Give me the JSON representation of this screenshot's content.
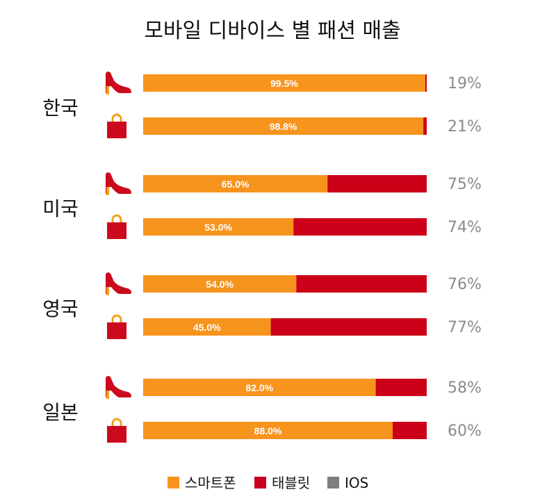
{
  "chart_data": {
    "type": "bar",
    "title": "모바일 디바이스 별 패션 매출",
    "orientation": "horizontal",
    "stacked": true,
    "groups": [
      {
        "country": "한국",
        "rows": [
          {
            "icon": "shoe-icon",
            "smartphone": 99.5,
            "label": "99.5%",
            "right_label": "19%"
          },
          {
            "icon": "bag-icon",
            "smartphone": 98.8,
            "label": "98.8%",
            "right_label": "21%"
          }
        ]
      },
      {
        "country": "미국",
        "rows": [
          {
            "icon": "shoe-icon",
            "smartphone": 65.0,
            "label": "65.0%",
            "right_label": "75%"
          },
          {
            "icon": "bag-icon",
            "smartphone": 53.0,
            "label": "53.0%",
            "right_label": "74%"
          }
        ]
      },
      {
        "country": "영국",
        "rows": [
          {
            "icon": "shoe-icon",
            "smartphone": 54.0,
            "label": "54.0%",
            "right_label": "76%"
          },
          {
            "icon": "bag-icon",
            "smartphone": 45.0,
            "label": "45.0%",
            "right_label": "77%"
          }
        ]
      },
      {
        "country": "일본",
        "rows": [
          {
            "icon": "shoe-icon",
            "smartphone": 82.0,
            "label": "82.0%",
            "right_label": "58%"
          },
          {
            "icon": "bag-icon",
            "smartphone": 88.0,
            "label": "88.0%",
            "right_label": "60%"
          }
        ]
      }
    ],
    "legend": [
      {
        "name": "스마트폰",
        "color": "#f7941d"
      },
      {
        "name": "태블릿",
        "color": "#c8001e"
      },
      {
        "name": "IOS",
        "color": "#7f7f7f"
      }
    ],
    "legend_position": "bottom",
    "xlim": [
      0,
      100
    ],
    "grid": false
  },
  "colors": {
    "smartphone": "#f7941d",
    "tablet": "#cc0018",
    "icon": "#cc0a1e",
    "shoe_heel": "#f2a11f"
  }
}
